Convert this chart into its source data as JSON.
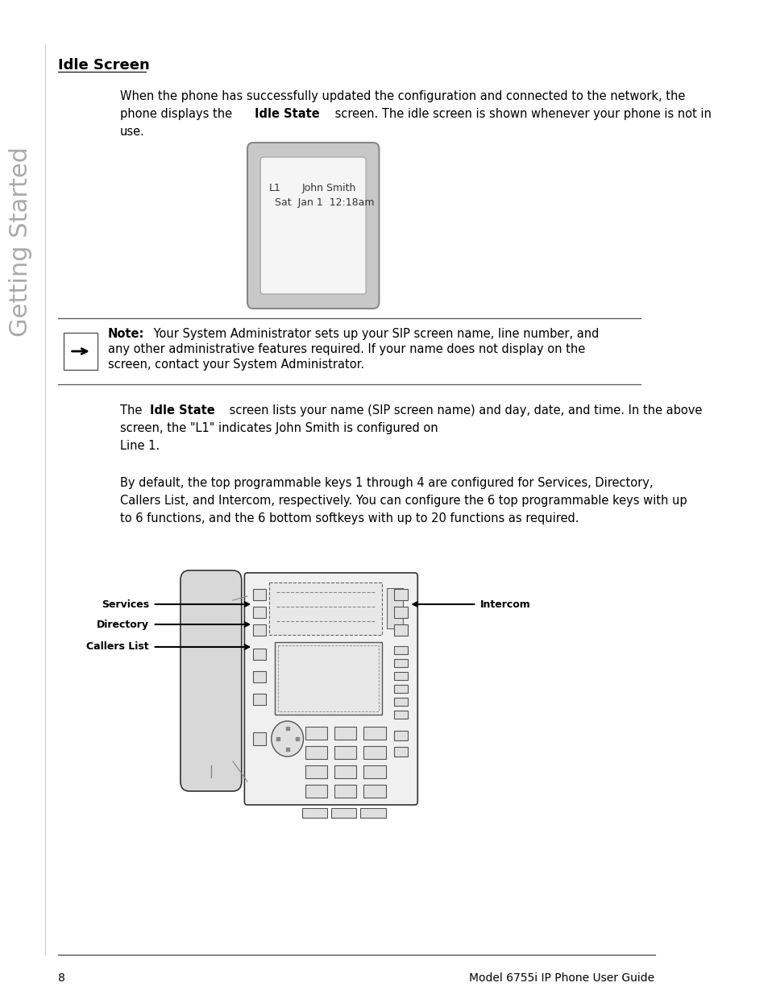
{
  "bg_color": "#ffffff",
  "sidebar_text": "Getting Started",
  "sidebar_color": "#aaaaaa",
  "heading": "Idle Screen",
  "body_fontsize": 10.5,
  "label_fontsize": 8.5,
  "footer_page": "8",
  "footer_text": "Model 6755i IP Phone User Guide",
  "footer_fontsize": 10,
  "para1_line1": "When the phone has successfully updated the configuration and connected to the network, the",
  "para1_line2_plain1": "phone displays the ",
  "para1_line2_bold": "Idle State",
  "para1_line2_plain2": " screen. The idle screen is shown whenever your phone is not in",
  "para1_line3": "use.",
  "note_bold": "Note:",
  "note_line1_rest": " Your System Administrator sets up your SIP screen name, line number, and",
  "note_line2": "any other administrative features required. If your name does not display on the",
  "note_line3": "screen, contact your System Administrator.",
  "para2_line1_plain1": "The ",
  "para2_line1_bold": "Idle State",
  "para2_line1_plain2": " screen lists your name (SIP screen name) and day, date, and time. In the above",
  "para2_line2": "screen, the \"L1\" indicates John Smith is configured on",
  "para2_line3": "Line 1.",
  "para3_line1": "By default, the top programmable keys 1 through 4 are configured for Services, Directory,",
  "para3_line2": "Callers List, and Intercom, respectively. You can configure the 6 top programmable keys with up",
  "para3_line3": "to 6 functions, and the 6 bottom softkeys with up to 20 functions as required.",
  "screen_line1_left": "L1",
  "screen_line1_right": "John Smith",
  "screen_line2": "Sat  Jan 1  12:18am",
  "label_services": "Services",
  "label_directory": "Directory",
  "label_callers": "Callers List",
  "label_intercom": "Intercom"
}
